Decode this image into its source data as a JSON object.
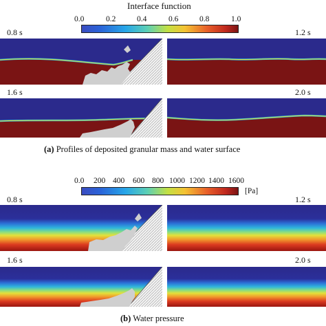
{
  "part_a": {
    "colorbar_title": "Interface function",
    "ticks": [
      "0.0",
      "0.2",
      "0.4",
      "0.6",
      "0.8",
      "1.0"
    ],
    "unit": "",
    "panel_times": [
      "0.8 s",
      "1.2 s",
      "1.6 s",
      "2.0 s"
    ],
    "caption_letter": "(a)",
    "caption_text": "Profiles of deposited granular mass and water surface"
  },
  "part_b": {
    "colorbar_title": "",
    "ticks": [
      "0.0",
      "200",
      "400",
      "600",
      "800",
      "1000",
      "1200",
      "1400",
      "1600"
    ],
    "unit": "[Pa]",
    "panel_times": [
      "0.8 s",
      "1.2 s",
      "1.6 s",
      "2.0 s"
    ],
    "caption_letter": "(b)",
    "caption_text": "Water pressure"
  },
  "colors": {
    "jet_low": "#2b2a8c",
    "jet_high": "#7a1414",
    "granular": "#cfcfcf"
  }
}
